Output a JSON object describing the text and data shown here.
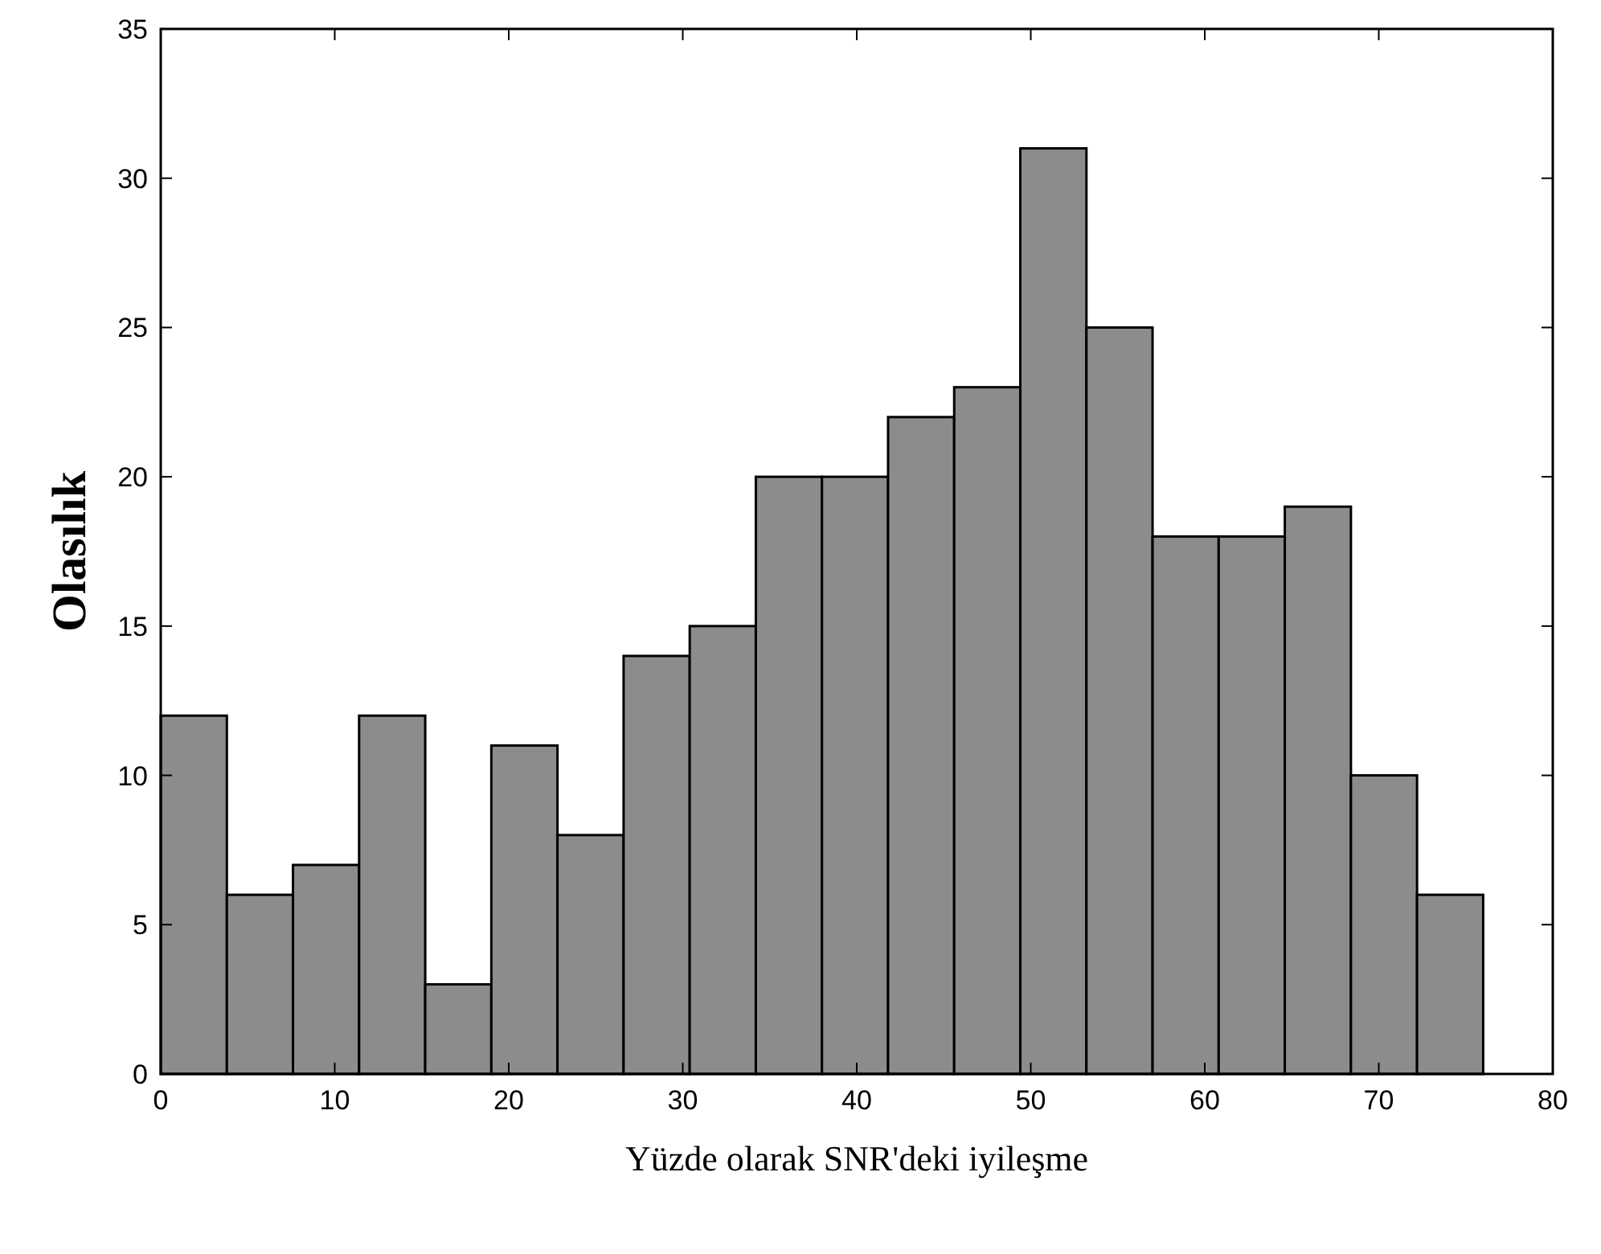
{
  "chart_data": {
    "type": "histogram",
    "xlabel": "Yüzde olarak SNR'deki iyileşme",
    "ylabel": "Olasılık",
    "bins": [
      0,
      3.8,
      7.6,
      11.4,
      15.2,
      19,
      22.8,
      26.6,
      30.4,
      34.2,
      38,
      41.8,
      45.6,
      49.4,
      53.2,
      57,
      60.8,
      64.6,
      68.4,
      72.2,
      76
    ],
    "values": [
      12,
      6,
      7,
      12,
      3,
      11,
      8,
      14,
      15,
      20,
      20,
      22,
      23,
      31,
      25,
      18,
      18,
      19,
      10,
      6
    ],
    "color": "#8c8c8c",
    "xlim": [
      0,
      80
    ],
    "xticks": [
      0,
      10,
      20,
      30,
      40,
      50,
      60,
      70,
      80
    ],
    "ylim": [
      0,
      35
    ],
    "yticks": [
      0,
      5,
      10,
      15,
      20,
      25,
      30,
      35
    ],
    "grid": false
  }
}
